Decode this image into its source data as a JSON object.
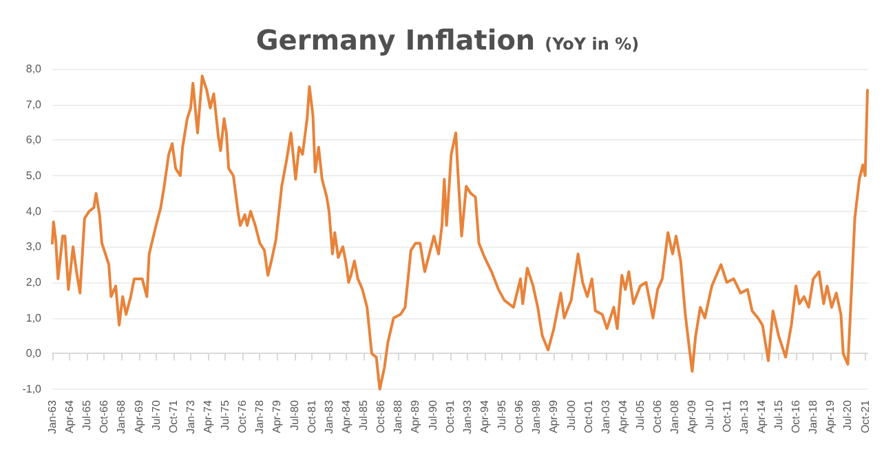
{
  "chart_data": {
    "type": "line",
    "title": "Germany Inflation",
    "subtitle": "(YoY in %)",
    "x": [
      "1963-01",
      "1963-02",
      "1963-04",
      "1963-06",
      "1963-10",
      "1963-12",
      "1964-03",
      "1964-07",
      "1964-10",
      "1965-01",
      "1965-05",
      "1965-09",
      "1966-01",
      "1966-03",
      "1966-06",
      "1966-08",
      "1967-02",
      "1967-04",
      "1967-08",
      "1967-11",
      "1968-02",
      "1968-05",
      "1968-09",
      "1968-12",
      "1969-07",
      "1969-11",
      "1970-01",
      "1970-07",
      "1970-11",
      "1971-02",
      "1971-06",
      "1971-09",
      "1971-12",
      "1972-04",
      "1972-06",
      "1972-10",
      "1973-01",
      "1973-03",
      "1973-07",
      "1973-11",
      "1974-03",
      "1974-06",
      "1974-09",
      "1975-01",
      "1975-03",
      "1975-06",
      "1975-08",
      "1975-10",
      "1976-02",
      "1976-06",
      "1976-08",
      "1976-12",
      "1977-02",
      "1977-05",
      "1977-09",
      "1978-01",
      "1978-05",
      "1978-08",
      "1978-11",
      "1979-03",
      "1979-08",
      "1979-12",
      "1980-02",
      "1980-04",
      "1980-08",
      "1980-11",
      "1981-02",
      "1981-06",
      "1981-08",
      "1981-11",
      "1982-01",
      "1982-04",
      "1982-07",
      "1982-11",
      "1983-01",
      "1983-04",
      "1983-06",
      "1983-09",
      "1984-01",
      "1984-04",
      "1984-06",
      "1984-08",
      "1984-11",
      "1985-02",
      "1985-06",
      "1985-10",
      "1986-02",
      "1986-06",
      "1986-09",
      "1987-01",
      "1987-04",
      "1987-09",
      "1988-03",
      "1988-07",
      "1988-12",
      "1989-04",
      "1989-08",
      "1989-12",
      "1990-08",
      "1990-12",
      "1991-03",
      "1991-05",
      "1991-07",
      "1991-11",
      "1992-03",
      "1992-05",
      "1992-08",
      "1992-12",
      "1993-04",
      "1993-08",
      "1993-11",
      "1994-04",
      "1994-10",
      "1995-04",
      "1995-09",
      "1996-05",
      "1996-11",
      "1997-01",
      "1997-05",
      "1997-10",
      "1998-02",
      "1998-06",
      "1998-11",
      "1999-04",
      "1999-10",
      "2000-01",
      "2000-07",
      "2001-01",
      "2001-05",
      "2001-09",
      "2002-01",
      "2002-04",
      "2002-10",
      "2003-02",
      "2003-08",
      "2003-11",
      "2004-03",
      "2004-06",
      "2004-09",
      "2005-01",
      "2005-07",
      "2005-12",
      "2006-06",
      "2006-10",
      "2007-02",
      "2007-07",
      "2007-11",
      "2008-02",
      "2008-06",
      "2008-10",
      "2009-02",
      "2009-04",
      "2009-07",
      "2009-11",
      "2010-03",
      "2010-09",
      "2011-05",
      "2011-10",
      "2012-04",
      "2012-10",
      "2013-04",
      "2013-08",
      "2014-01",
      "2014-05",
      "2014-10",
      "2015-02",
      "2015-07",
      "2016-01",
      "2016-06",
      "2016-10",
      "2017-01",
      "2017-05",
      "2017-09",
      "2018-01",
      "2018-06",
      "2018-10",
      "2019-01",
      "2019-05",
      "2019-09",
      "2020-01",
      "2020-03",
      "2020-07",
      "2020-09",
      "2021-01",
      "2021-05",
      "2021-08",
      "2021-10",
      "2021-12"
    ],
    "series": [
      {
        "color": "#e8833a",
        "values": [
          3.1,
          3.7,
          3.2,
          2.1,
          3.3,
          3.3,
          1.8,
          3.0,
          2.3,
          1.7,
          3.8,
          4.0,
          4.1,
          4.5,
          3.9,
          3.1,
          2.5,
          1.6,
          1.9,
          0.8,
          1.6,
          1.1,
          1.6,
          2.1,
          2.1,
          1.6,
          2.8,
          3.6,
          4.1,
          4.7,
          5.6,
          5.9,
          5.2,
          5.0,
          5.8,
          6.6,
          6.9,
          7.6,
          6.2,
          7.8,
          7.4,
          6.9,
          7.3,
          6.1,
          5.7,
          6.6,
          6.2,
          5.2,
          5.0,
          4.0,
          3.6,
          3.9,
          3.6,
          4.0,
          3.6,
          3.1,
          2.9,
          2.2,
          2.6,
          3.2,
          4.7,
          5.4,
          5.8,
          6.2,
          4.9,
          5.8,
          5.6,
          6.6,
          7.5,
          6.7,
          5.1,
          5.8,
          4.9,
          4.4,
          4.0,
          2.8,
          3.4,
          2.7,
          3.0,
          2.5,
          2.0,
          2.2,
          2.6,
          2.1,
          1.8,
          1.3,
          0.0,
          -0.1,
          -1.0,
          -0.4,
          0.3,
          1.0,
          1.1,
          1.3,
          2.9,
          3.1,
          3.1,
          2.3,
          3.3,
          2.8,
          3.6,
          4.9,
          3.6,
          5.6,
          6.2,
          5.0,
          3.3,
          4.7,
          4.5,
          4.4,
          3.1,
          2.7,
          2.3,
          1.8,
          1.5,
          1.3,
          2.1,
          1.4,
          2.4,
          1.9,
          1.3,
          0.5,
          0.1,
          0.7,
          1.7,
          1.0,
          1.5,
          2.8,
          2.0,
          1.6,
          2.1,
          1.2,
          1.1,
          0.7,
          1.3,
          0.7,
          2.2,
          1.8,
          2.3,
          1.4,
          1.9,
          2.0,
          1.0,
          1.8,
          2.1,
          3.4,
          2.8,
          3.3,
          2.6,
          1.1,
          0.0,
          -0.5,
          0.5,
          1.3,
          1.0,
          1.9,
          2.5,
          2.0,
          2.1,
          1.7,
          1.8,
          1.2,
          1.0,
          0.8,
          -0.2,
          1.2,
          0.5,
          -0.1,
          0.8,
          1.9,
          1.4,
          1.6,
          1.3,
          2.1,
          2.3,
          1.4,
          1.9,
          1.3,
          1.7,
          1.1,
          0.0,
          -0.3,
          1.0,
          3.8,
          4.9,
          5.3,
          5.0,
          7.4
        ]
      }
    ],
    "xlim": [
      "1963-01",
      "2021-12"
    ],
    "xticks": [
      {
        "value": "1963-01",
        "label": "Jan-63"
      },
      {
        "value": "1964-04",
        "label": "Apr-64"
      },
      {
        "value": "1965-07",
        "label": "Jul-65"
      },
      {
        "value": "1966-10",
        "label": "Oct-66"
      },
      {
        "value": "1968-01",
        "label": "Jan-68"
      },
      {
        "value": "1969-04",
        "label": "Apr-69"
      },
      {
        "value": "1970-07",
        "label": "Jul-70"
      },
      {
        "value": "1971-10",
        "label": "Oct-71"
      },
      {
        "value": "1973-01",
        "label": "Jan-73"
      },
      {
        "value": "1974-04",
        "label": "Apr-74"
      },
      {
        "value": "1975-07",
        "label": "Jul-75"
      },
      {
        "value": "1976-10",
        "label": "Oct-76"
      },
      {
        "value": "1978-01",
        "label": "Jan-78"
      },
      {
        "value": "1979-04",
        "label": "Apr-79"
      },
      {
        "value": "1980-07",
        "label": "Jul-80"
      },
      {
        "value": "1981-10",
        "label": "Oct-81"
      },
      {
        "value": "1983-01",
        "label": "Jan-83"
      },
      {
        "value": "1984-04",
        "label": "Apr-84"
      },
      {
        "value": "1985-07",
        "label": "Jul-85"
      },
      {
        "value": "1986-10",
        "label": "Oct-86"
      },
      {
        "value": "1988-01",
        "label": "Jan-88"
      },
      {
        "value": "1989-04",
        "label": "Apr-89"
      },
      {
        "value": "1990-07",
        "label": "Jul-90"
      },
      {
        "value": "1991-10",
        "label": "Oct-91"
      },
      {
        "value": "1993-01",
        "label": "Jan-93"
      },
      {
        "value": "1994-04",
        "label": "Apr-94"
      },
      {
        "value": "1995-07",
        "label": "Jul-95"
      },
      {
        "value": "1996-10",
        "label": "Oct-96"
      },
      {
        "value": "1998-01",
        "label": "Jan-98"
      },
      {
        "value": "1999-04",
        "label": "Apr-99"
      },
      {
        "value": "2000-07",
        "label": "Jul-00"
      },
      {
        "value": "2001-10",
        "label": "Oct-01"
      },
      {
        "value": "2003-01",
        "label": "Jan-03"
      },
      {
        "value": "2004-04",
        "label": "Apr-04"
      },
      {
        "value": "2005-07",
        "label": "Jul-05"
      },
      {
        "value": "2006-10",
        "label": "Oct-06"
      },
      {
        "value": "2008-01",
        "label": "Jan-08"
      },
      {
        "value": "2009-04",
        "label": "Apr-09"
      },
      {
        "value": "2010-07",
        "label": "Jul-10"
      },
      {
        "value": "2011-10",
        "label": "Oct-11"
      },
      {
        "value": "2013-01",
        "label": "Jan-13"
      },
      {
        "value": "2014-04",
        "label": "Apr-14"
      },
      {
        "value": "2015-07",
        "label": "Jul-15"
      },
      {
        "value": "2016-10",
        "label": "Oct-16"
      },
      {
        "value": "2018-01",
        "label": "Jan-18"
      },
      {
        "value": "2019-04",
        "label": "Apr-19"
      },
      {
        "value": "2020-07",
        "label": "Jul-20"
      },
      {
        "value": "2021-10",
        "label": "Oct-21"
      }
    ],
    "ylim": [
      -1,
      8
    ],
    "yticks": [
      {
        "value": -1,
        "label": "-1,0"
      },
      {
        "value": 0,
        "label": "0,0"
      },
      {
        "value": 1,
        "label": "1,0"
      },
      {
        "value": 2,
        "label": "2,0"
      },
      {
        "value": 3,
        "label": "3,0"
      },
      {
        "value": 4,
        "label": "4,0"
      },
      {
        "value": 5,
        "label": "5,0"
      },
      {
        "value": 6,
        "label": "6,0"
      },
      {
        "value": 7,
        "label": "7,0"
      },
      {
        "value": 8,
        "label": "8,0"
      }
    ],
    "grid": "y",
    "marker": "none",
    "line_style": "solid"
  }
}
